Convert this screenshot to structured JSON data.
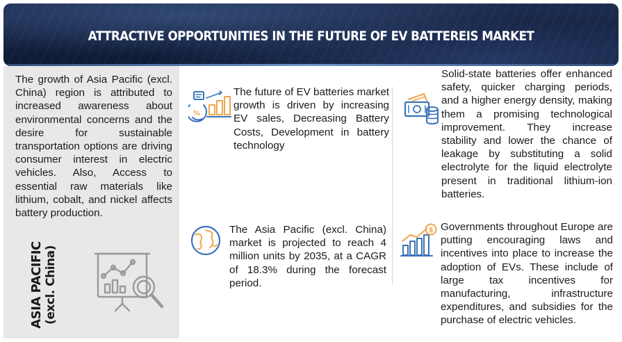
{
  "header": {
    "title": "ATTRACTIVE OPPORTUNITIES IN THE FUTURE OF EV BATTEREIS MARKET"
  },
  "left_panel": {
    "text": "The growth of Asia Pacific (excl. China) region is attributed to increased awareness about environmental concerns and the desire for sustainable transportation options are driving consumer interest in electric vehicles. Also, Access to essential raw materials like lithium, cobalt, and nickel affects battery production.",
    "region_line1": "ASIA PACIFIC",
    "region_line2": "(excl. China)",
    "illustration_icon": "report-chart-magnifier-icon"
  },
  "insights": [
    {
      "icon": "sales-growth-chart-icon",
      "text": "The future of EV batteries market growth is driven by increasing EV sales, Decreasing Battery Costs, Development in battery technology"
    },
    {
      "icon": "globe-map-icon",
      "text": "The Asia Pacific (excl. China) market is projected to reach 4 million units by 2035, at a CAGR of 18.3% during the forecast period."
    },
    {
      "icon": "money-coins-icon",
      "text": "Solid-state batteries offer enhanced safety, quicker charging periods, and a higher energy density, making them a promising technological improvement. They increase stability and lower the chance of leakage by substituting a solid electrolyte for the liquid electrolyte present in traditional lithium-ion batteries."
    },
    {
      "icon": "growth-bars-dollar-icon",
      "text": "Governments throughout Europe are putting encouraging laws and incentives into place to increase the adoption of EVs. These include of large tax incentives for manufacturing, infrastructure expenditures, and subsidies for the purchase of electric vehicles."
    }
  ],
  "colors": {
    "banner": "#142140",
    "accent_orange": "#f0a54a",
    "accent_blue": "#3a73b8",
    "left_panel_bg": "#e8e8e8",
    "illustration_gray": "#9a9a9a"
  }
}
